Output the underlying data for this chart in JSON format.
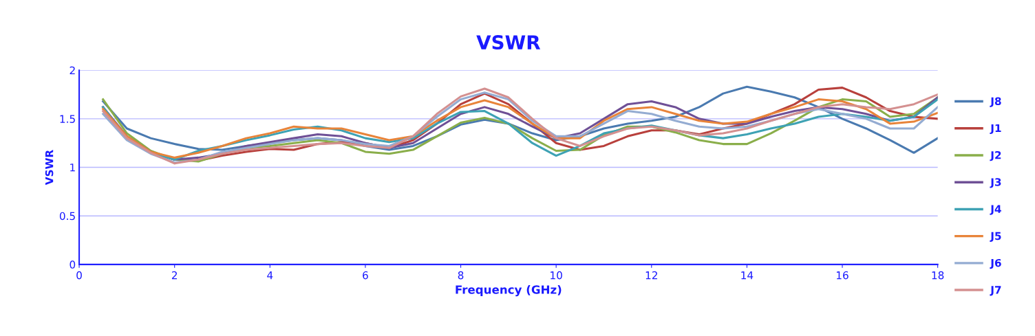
{
  "chart_data": {
    "type": "line",
    "title": "VSWR",
    "xlabel": "Frequency (GHz)",
    "ylabel": "VSWR",
    "x": [
      0.5,
      1,
      1.5,
      2,
      2.5,
      3,
      3.5,
      4,
      4.5,
      5,
      5.5,
      6,
      6.5,
      7,
      7.5,
      8,
      8.5,
      9,
      9.5,
      10,
      10.5,
      11,
      11.5,
      12,
      12.5,
      13,
      13.5,
      14,
      14.5,
      15,
      15.5,
      16,
      16.5,
      17,
      17.5,
      18
    ],
    "xlim": [
      0,
      18
    ],
    "xticks": [
      0,
      2,
      4,
      6,
      8,
      10,
      12,
      14,
      16,
      18
    ],
    "ylim": [
      0,
      2
    ],
    "yticks": [
      0,
      0.5,
      1,
      1.5,
      2
    ],
    "grid": "y",
    "legend": "right",
    "marker": "none",
    "line_style": "solid",
    "series": [
      {
        "name": "J8",
        "color": "#4a7ab0",
        "values": [
          1.68,
          1.4,
          1.3,
          1.24,
          1.19,
          1.18,
          1.22,
          1.25,
          1.28,
          1.3,
          1.28,
          1.22,
          1.18,
          1.22,
          1.32,
          1.44,
          1.49,
          1.45,
          1.35,
          1.28,
          1.32,
          1.4,
          1.45,
          1.48,
          1.52,
          1.62,
          1.76,
          1.83,
          1.78,
          1.72,
          1.62,
          1.5,
          1.4,
          1.28,
          1.15,
          1.3
        ]
      },
      {
        "name": "J1",
        "color": "#b8403c",
        "values": [
          1.62,
          1.3,
          1.15,
          1.08,
          1.07,
          1.12,
          1.16,
          1.19,
          1.18,
          1.24,
          1.26,
          1.25,
          1.2,
          1.28,
          1.45,
          1.65,
          1.76,
          1.65,
          1.45,
          1.25,
          1.18,
          1.22,
          1.32,
          1.38,
          1.38,
          1.34,
          1.4,
          1.45,
          1.55,
          1.65,
          1.8,
          1.82,
          1.72,
          1.58,
          1.52,
          1.5
        ]
      },
      {
        "name": "J2",
        "color": "#8aae4a",
        "values": [
          1.7,
          1.35,
          1.17,
          1.08,
          1.06,
          1.14,
          1.2,
          1.22,
          1.25,
          1.28,
          1.25,
          1.16,
          1.14,
          1.18,
          1.32,
          1.46,
          1.51,
          1.45,
          1.3,
          1.17,
          1.18,
          1.33,
          1.42,
          1.42,
          1.36,
          1.28,
          1.24,
          1.24,
          1.35,
          1.48,
          1.62,
          1.7,
          1.68,
          1.52,
          1.55,
          1.72
        ]
      },
      {
        "name": "J3",
        "color": "#6f5096",
        "values": [
          1.62,
          1.32,
          1.16,
          1.08,
          1.1,
          1.14,
          1.22,
          1.26,
          1.3,
          1.34,
          1.32,
          1.25,
          1.2,
          1.25,
          1.4,
          1.55,
          1.62,
          1.55,
          1.42,
          1.3,
          1.35,
          1.5,
          1.65,
          1.68,
          1.62,
          1.5,
          1.45,
          1.45,
          1.52,
          1.58,
          1.62,
          1.6,
          1.55,
          1.48,
          1.52,
          1.72
        ]
      },
      {
        "name": "J4",
        "color": "#3ea2b4",
        "values": [
          1.62,
          1.3,
          1.15,
          1.08,
          1.17,
          1.22,
          1.28,
          1.33,
          1.39,
          1.42,
          1.38,
          1.3,
          1.26,
          1.3,
          1.45,
          1.57,
          1.58,
          1.45,
          1.25,
          1.12,
          1.22,
          1.35,
          1.4,
          1.43,
          1.38,
          1.33,
          1.3,
          1.34,
          1.4,
          1.45,
          1.52,
          1.55,
          1.52,
          1.48,
          1.52,
          1.7
        ]
      },
      {
        "name": "J5",
        "color": "#e8843a",
        "values": [
          1.6,
          1.32,
          1.16,
          1.1,
          1.15,
          1.22,
          1.3,
          1.35,
          1.42,
          1.4,
          1.4,
          1.34,
          1.28,
          1.32,
          1.48,
          1.62,
          1.69,
          1.62,
          1.45,
          1.3,
          1.3,
          1.48,
          1.6,
          1.62,
          1.55,
          1.48,
          1.45,
          1.47,
          1.55,
          1.62,
          1.7,
          1.68,
          1.6,
          1.45,
          1.47,
          1.56
        ]
      },
      {
        "name": "J6",
        "color": "#94acd2",
        "values": [
          1.55,
          1.28,
          1.14,
          1.05,
          1.08,
          1.16,
          1.2,
          1.24,
          1.28,
          1.3,
          1.28,
          1.24,
          1.22,
          1.32,
          1.52,
          1.7,
          1.77,
          1.7,
          1.48,
          1.32,
          1.32,
          1.45,
          1.58,
          1.55,
          1.48,
          1.42,
          1.4,
          1.42,
          1.48,
          1.55,
          1.6,
          1.55,
          1.5,
          1.4,
          1.4,
          1.62
        ]
      },
      {
        "name": "J7",
        "color": "#d49090",
        "values": [
          1.58,
          1.3,
          1.15,
          1.04,
          1.08,
          1.14,
          1.18,
          1.2,
          1.22,
          1.24,
          1.25,
          1.22,
          1.2,
          1.32,
          1.55,
          1.73,
          1.81,
          1.72,
          1.5,
          1.3,
          1.22,
          1.32,
          1.4,
          1.42,
          1.38,
          1.33,
          1.35,
          1.4,
          1.48,
          1.55,
          1.62,
          1.65,
          1.62,
          1.6,
          1.65,
          1.75
        ]
      }
    ]
  }
}
